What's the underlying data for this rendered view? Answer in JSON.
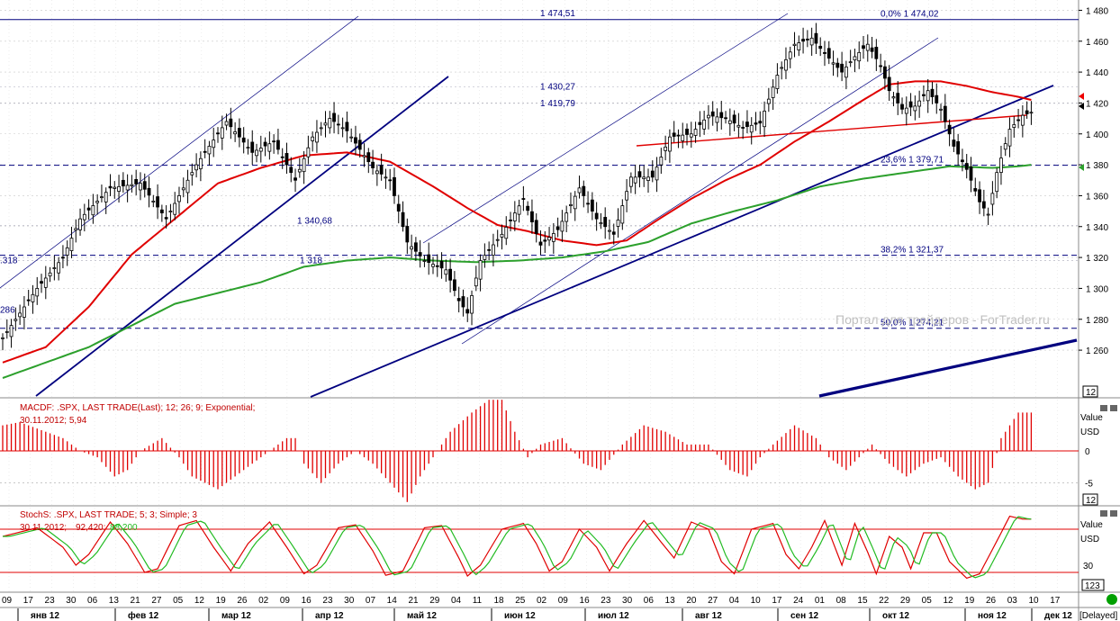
{
  "colors": {
    "background": "#ffffff",
    "grid": "#c8c8c8",
    "candle": "#000000",
    "ma_short": "#e00000",
    "ma_long": "#2ca02c",
    "trend": "#00007f",
    "macd_hist": "#e00000",
    "stoch_k": "#e00000",
    "stoch_d": "#22bb22",
    "watermark": "#c0c0c0",
    "status_dot": "#00a000"
  },
  "chart_data": [
    {
      "type": "candlestick",
      "name": ".SPX",
      "ylim": [
        1235,
        1482
      ],
      "y_ticks": [
        1260,
        1280,
        1300,
        1320,
        1340,
        1360,
        1380,
        1400,
        1420,
        1440,
        1460,
        1480
      ],
      "y_tick_labels": [
        "1 260",
        "1 280",
        "1 300",
        "1 320",
        "1 340",
        "1 360",
        "1 380",
        "1 400",
        "1 420",
        "1 440",
        "1 460",
        "1 480"
      ],
      "price_key_points": [
        [
          0,
          1268
        ],
        [
          8,
          1300
        ],
        [
          14,
          1320
        ],
        [
          18,
          1345
        ],
        [
          25,
          1365
        ],
        [
          32,
          1368
        ],
        [
          38,
          1345
        ],
        [
          45,
          1380
        ],
        [
          52,
          1408
        ],
        [
          58,
          1388
        ],
        [
          63,
          1395
        ],
        [
          68,
          1370
        ],
        [
          72,
          1398
        ],
        [
          76,
          1410
        ],
        [
          80,
          1402
        ],
        [
          86,
          1378
        ],
        [
          90,
          1370
        ],
        [
          94,
          1330
        ],
        [
          98,
          1318
        ],
        [
          103,
          1312
        ],
        [
          106,
          1292
        ],
        [
          108,
          1284
        ],
        [
          111,
          1318
        ],
        [
          116,
          1335
        ],
        [
          121,
          1358
        ],
        [
          125,
          1328
        ],
        [
          129,
          1338
        ],
        [
          134,
          1365
        ],
        [
          138,
          1345
        ],
        [
          142,
          1335
        ],
        [
          146,
          1372
        ],
        [
          151,
          1372
        ],
        [
          155,
          1398
        ],
        [
          160,
          1400
        ],
        [
          164,
          1412
        ],
        [
          168,
          1410
        ],
        [
          172,
          1404
        ],
        [
          176,
          1407
        ],
        [
          180,
          1438
        ],
        [
          184,
          1458
        ],
        [
          188,
          1462
        ],
        [
          191,
          1452
        ],
        [
          195,
          1440
        ],
        [
          198,
          1450
        ],
        [
          201,
          1458
        ],
        [
          204,
          1444
        ],
        [
          206,
          1428
        ],
        [
          209,
          1416
        ],
        [
          212,
          1418
        ],
        [
          215,
          1428
        ],
        [
          218,
          1416
        ],
        [
          221,
          1392
        ],
        [
          224,
          1377
        ],
        [
          227,
          1356
        ],
        [
          229,
          1348
        ],
        [
          231,
          1375
        ],
        [
          234,
          1403
        ],
        [
          237,
          1412
        ],
        [
          239,
          1414
        ]
      ],
      "series": [
        {
          "name": "MA short",
          "points": [
            [
              0,
              1252
            ],
            [
              10,
              1262
            ],
            [
              20,
              1288
            ],
            [
              30,
              1322
            ],
            [
              40,
              1345
            ],
            [
              50,
              1368
            ],
            [
              60,
              1378
            ],
            [
              70,
              1386
            ],
            [
              80,
              1388
            ],
            [
              90,
              1382
            ],
            [
              100,
              1366
            ],
            [
              108,
              1352
            ],
            [
              115,
              1341
            ],
            [
              122,
              1337
            ],
            [
              130,
              1331
            ],
            [
              138,
              1328
            ],
            [
              145,
              1331
            ],
            [
              152,
              1344
            ],
            [
              160,
              1358
            ],
            [
              168,
              1370
            ],
            [
              176,
              1380
            ],
            [
              184,
              1395
            ],
            [
              192,
              1408
            ],
            [
              200,
              1422
            ],
            [
              206,
              1432
            ],
            [
              212,
              1434
            ],
            [
              218,
              1434
            ],
            [
              224,
              1431
            ],
            [
              230,
              1427
            ],
            [
              236,
              1424
            ],
            [
              239,
              1422
            ]
          ]
        },
        {
          "name": "MA long",
          "points": [
            [
              0,
              1242
            ],
            [
              20,
              1262
            ],
            [
              40,
              1290
            ],
            [
              60,
              1304
            ],
            [
              70,
              1314
            ],
            [
              80,
              1318
            ],
            [
              90,
              1320
            ],
            [
              100,
              1318
            ],
            [
              110,
              1317
            ],
            [
              120,
              1318
            ],
            [
              130,
              1320
            ],
            [
              140,
              1324
            ],
            [
              150,
              1330
            ],
            [
              160,
              1342
            ],
            [
              170,
              1350
            ],
            [
              180,
              1357
            ],
            [
              190,
              1366
            ],
            [
              200,
              1371
            ],
            [
              210,
              1375
            ],
            [
              220,
              1379
            ],
            [
              230,
              1378
            ],
            [
              236,
              1379
            ],
            [
              239,
              1380
            ]
          ]
        }
      ],
      "fib_levels": [
        {
          "label": "0,0% 1 474,02",
          "value": 1474
        },
        {
          "label": "23,6% 1 379,71",
          "value": 1379.7
        },
        {
          "label": "38,2% 1 321,37",
          "value": 1321.4
        },
        {
          "label": "50,0% 1 274,21",
          "value": 1274.2
        }
      ],
      "price_annotations": [
        "1 474,51",
        "1 430,27",
        "1 419,79",
        "1 340,68",
        "1 318",
        ".318",
        "286"
      ]
    },
    {
      "type": "bar",
      "name": "MACDF",
      "ylim": [
        -8,
        10
      ],
      "y_ticks": [
        0,
        -5
      ],
      "y_tick_labels": [
        "0",
        "-5"
      ],
      "histogram_key_points": [
        [
          0,
          4
        ],
        [
          4,
          4.5
        ],
        [
          10,
          3
        ],
        [
          14,
          2
        ],
        [
          18,
          0
        ],
        [
          22,
          -1
        ],
        [
          26,
          -4
        ],
        [
          29,
          -3
        ],
        [
          32,
          0
        ],
        [
          37,
          2
        ],
        [
          41,
          -1
        ],
        [
          44,
          -4
        ],
        [
          50,
          -6
        ],
        [
          54,
          -4
        ],
        [
          58,
          -2
        ],
        [
          62,
          0
        ],
        [
          66,
          2
        ],
        [
          68,
          2
        ],
        [
          70,
          -2
        ],
        [
          74,
          -5
        ],
        [
          78,
          -2
        ],
        [
          82,
          0
        ],
        [
          86,
          -2
        ],
        [
          90,
          -5
        ],
        [
          94,
          -8
        ],
        [
          97,
          -4
        ],
        [
          100,
          -1
        ],
        [
          104,
          3
        ],
        [
          109,
          6
        ],
        [
          113,
          8
        ],
        [
          116,
          8
        ],
        [
          119,
          3
        ],
        [
          122,
          -1
        ],
        [
          125,
          1
        ],
        [
          130,
          2
        ],
        [
          135,
          -2
        ],
        [
          139,
          -3
        ],
        [
          144,
          1
        ],
        [
          149,
          4
        ],
        [
          154,
          3
        ],
        [
          159,
          1
        ],
        [
          164,
          1
        ],
        [
          169,
          -3
        ],
        [
          173,
          -4
        ],
        [
          176,
          -1
        ],
        [
          179,
          1
        ],
        [
          184,
          4
        ],
        [
          189,
          2
        ],
        [
          192,
          -1
        ],
        [
          196,
          -3
        ],
        [
          199,
          -1
        ],
        [
          202,
          1
        ],
        [
          206,
          -2
        ],
        [
          210,
          -4
        ],
        [
          214,
          -2
        ],
        [
          218,
          -1
        ],
        [
          222,
          -4
        ],
        [
          226,
          -6
        ],
        [
          229,
          -5
        ],
        [
          232,
          2
        ],
        [
          236,
          6
        ],
        [
          239,
          6
        ]
      ]
    },
    {
      "type": "line",
      "name": "StochS",
      "ylim": [
        0,
        100
      ],
      "y_ticks": [
        30
      ],
      "y_tick_labels": [
        "30"
      ],
      "k_key_points": [
        [
          0,
          70
        ],
        [
          8,
          82
        ],
        [
          14,
          55
        ],
        [
          17,
          30
        ],
        [
          20,
          45
        ],
        [
          25,
          90
        ],
        [
          29,
          60
        ],
        [
          33,
          20
        ],
        [
          36,
          25
        ],
        [
          41,
          85
        ],
        [
          45,
          92
        ],
        [
          49,
          55
        ],
        [
          53,
          22
        ],
        [
          57,
          60
        ],
        [
          62,
          90
        ],
        [
          66,
          55
        ],
        [
          70,
          18
        ],
        [
          73,
          30
        ],
        [
          78,
          82
        ],
        [
          82,
          86
        ],
        [
          86,
          50
        ],
        [
          89,
          16
        ],
        [
          93,
          22
        ],
        [
          98,
          82
        ],
        [
          102,
          85
        ],
        [
          106,
          40
        ],
        [
          108,
          15
        ],
        [
          111,
          30
        ],
        [
          116,
          80
        ],
        [
          121,
          88
        ],
        [
          124,
          60
        ],
        [
          127,
          22
        ],
        [
          130,
          35
        ],
        [
          134,
          80
        ],
        [
          138,
          55
        ],
        [
          141,
          22
        ],
        [
          145,
          60
        ],
        [
          149,
          92
        ],
        [
          153,
          62
        ],
        [
          156,
          40
        ],
        [
          160,
          90
        ],
        [
          164,
          80
        ],
        [
          167,
          35
        ],
        [
          170,
          18
        ],
        [
          174,
          80
        ],
        [
          179,
          88
        ],
        [
          182,
          45
        ],
        [
          185,
          25
        ],
        [
          188,
          55
        ],
        [
          191,
          92
        ],
        [
          195,
          30
        ],
        [
          198,
          88
        ],
        [
          201,
          48
        ],
        [
          203,
          18
        ],
        [
          206,
          70
        ],
        [
          209,
          55
        ],
        [
          211,
          25
        ],
        [
          214,
          75
        ],
        [
          217,
          75
        ],
        [
          220,
          35
        ],
        [
          224,
          12
        ],
        [
          227,
          18
        ],
        [
          230,
          52
        ],
        [
          234,
          98
        ],
        [
          237,
          94
        ],
        [
          239,
          94
        ]
      ]
    }
  ],
  "price_scale_badge": "12",
  "macd": {
    "legend": "MACDF: .SPX, LAST TRADE(Last); 12; 26; 9; Exponential;",
    "date_value": "30.11.2012; 5,94",
    "axis_title_1": "Value",
    "axis_title_2": "USD",
    "badge": "12"
  },
  "stoch": {
    "legend": "StochS: .SPX, LAST TRADE; 5; 3; Simple; 3",
    "date_label": "30.11.2012;",
    "k_value": "92,420;",
    "d_value": "88,200",
    "axis_title_1": "Value",
    "axis_title_2": "USD",
    "badge": "123"
  },
  "watermark": "Портал для трейдеров - ForTrader.ru",
  "x_axis": {
    "day_labels": [
      "09",
      "17",
      "23",
      "30",
      "06",
      "13",
      "21",
      "27",
      "05",
      "12",
      "19",
      "26",
      "02",
      "09",
      "16",
      "23",
      "30",
      "07",
      "14",
      "21",
      "29",
      "04",
      "11",
      "18",
      "25",
      "02",
      "09",
      "16",
      "23",
      "30",
      "06",
      "13",
      "20",
      "27",
      "04",
      "10",
      "17",
      "24",
      "01",
      "08",
      "15",
      "22",
      "29",
      "05",
      "12",
      "19",
      "26",
      "03",
      "10",
      "17"
    ],
    "month_labels": [
      "янв 12",
      "фев 12",
      "мар 12",
      "апр 12",
      "май 12",
      "июн 12",
      "июл 12",
      "авг 12",
      "сен 12",
      "окт 12",
      "ноя 12",
      "дек 12"
    ]
  },
  "status": "[Delayed]"
}
